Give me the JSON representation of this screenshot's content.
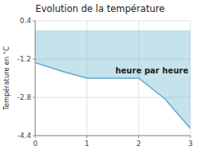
{
  "chart_data": {
    "type": "area",
    "title": "Evolution de la température",
    "y_label": "Température en °C",
    "x": [
      0,
      0.5,
      1.0,
      2.0,
      2.5,
      3.0
    ],
    "values": [
      -1.35,
      -1.7,
      -2.0,
      -2.0,
      -2.85,
      -4.1
    ],
    "color": "#5aaccc",
    "xlim": [
      0,
      3
    ],
    "ylim": [
      -4.4,
      0.4
    ],
    "xticks": [
      0,
      1,
      2,
      3
    ],
    "yticks": [
      0.4,
      -1.2,
      -2.8,
      -4.4
    ],
    "grid": true,
    "annotations": [
      {
        "text": "heure par heure",
        "x": 1.55,
        "y": -1.55
      }
    ]
  }
}
